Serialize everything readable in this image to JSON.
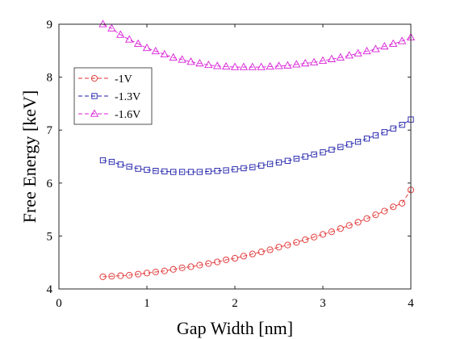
{
  "chart_data": {
    "type": "line",
    "title": "",
    "xlabel": "Gap Width [nm]",
    "ylabel": "Free Energy [keV]",
    "xlim": [
      0,
      4
    ],
    "ylim": [
      4,
      9
    ],
    "xticks": [
      0,
      1,
      2,
      3,
      4
    ],
    "yticks": [
      4,
      5,
      6,
      7,
      8,
      9
    ],
    "grid": false,
    "legend_position": "upper-left",
    "series": [
      {
        "name": "-1V",
        "color": "#e03030",
        "marker": "circle",
        "line_style": "dashed",
        "x": [
          0.5,
          0.6,
          0.7,
          0.8,
          0.9,
          1.0,
          1.1,
          1.2,
          1.3,
          1.4,
          1.5,
          1.6,
          1.7,
          1.8,
          1.9,
          2.0,
          2.1,
          2.2,
          2.3,
          2.4,
          2.5,
          2.6,
          2.7,
          2.8,
          2.9,
          3.0,
          3.1,
          3.2,
          3.3,
          3.4,
          3.5,
          3.6,
          3.7,
          3.8,
          3.9,
          4.0
        ],
        "values": [
          4.23,
          4.24,
          4.25,
          4.26,
          4.28,
          4.3,
          4.32,
          4.34,
          4.37,
          4.4,
          4.42,
          4.45,
          4.48,
          4.51,
          4.55,
          4.58,
          4.62,
          4.66,
          4.7,
          4.74,
          4.79,
          4.83,
          4.88,
          4.93,
          4.98,
          5.03,
          5.08,
          5.14,
          5.2,
          5.26,
          5.33,
          5.4,
          5.47,
          5.55,
          5.62,
          5.87
        ]
      },
      {
        "name": "-1.3V",
        "color": "#1c1ca8",
        "marker": "square",
        "line_style": "dashed",
        "x": [
          0.5,
          0.6,
          0.7,
          0.8,
          0.9,
          1.0,
          1.1,
          1.2,
          1.3,
          1.4,
          1.5,
          1.6,
          1.7,
          1.8,
          1.9,
          2.0,
          2.1,
          2.2,
          2.3,
          2.4,
          2.5,
          2.6,
          2.7,
          2.8,
          2.9,
          3.0,
          3.1,
          3.2,
          3.3,
          3.4,
          3.5,
          3.6,
          3.7,
          3.8,
          3.9,
          4.0
        ],
        "values": [
          6.43,
          6.4,
          6.35,
          6.31,
          6.27,
          6.25,
          6.23,
          6.22,
          6.21,
          6.21,
          6.21,
          6.21,
          6.22,
          6.23,
          6.24,
          6.26,
          6.28,
          6.3,
          6.33,
          6.36,
          6.39,
          6.42,
          6.46,
          6.5,
          6.54,
          6.58,
          6.63,
          6.68,
          6.73,
          6.78,
          6.84,
          6.9,
          6.96,
          7.03,
          7.1,
          7.2
        ]
      },
      {
        "name": "-1.6V",
        "color": "#d81ed8",
        "marker": "triangle",
        "line_style": "dashed",
        "x": [
          0.5,
          0.6,
          0.7,
          0.8,
          0.9,
          1.0,
          1.1,
          1.2,
          1.3,
          1.4,
          1.5,
          1.6,
          1.7,
          1.8,
          1.9,
          2.0,
          2.1,
          2.2,
          2.3,
          2.4,
          2.5,
          2.6,
          2.7,
          2.8,
          2.9,
          3.0,
          3.1,
          3.2,
          3.3,
          3.4,
          3.5,
          3.6,
          3.7,
          3.8,
          3.9,
          4.0
        ],
        "values": [
          9.0,
          8.92,
          8.8,
          8.71,
          8.63,
          8.55,
          8.49,
          8.43,
          8.37,
          8.33,
          8.29,
          8.26,
          8.23,
          8.21,
          8.2,
          8.19,
          8.19,
          8.19,
          8.19,
          8.2,
          8.21,
          8.22,
          8.24,
          8.26,
          8.28,
          8.31,
          8.34,
          8.37,
          8.41,
          8.45,
          8.49,
          8.53,
          8.58,
          8.63,
          8.68,
          8.75
        ]
      }
    ]
  }
}
